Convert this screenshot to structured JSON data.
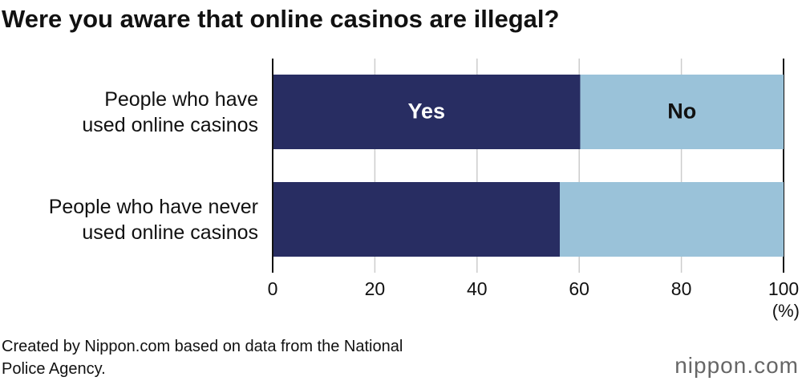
{
  "chart_data": {
    "type": "stacked_barh",
    "title": "Were you aware that online casinos are illegal?",
    "categories": [
      "People who have\nused online casinos",
      "People who have never\nused online casinos"
    ],
    "series": [
      {
        "name": "Yes",
        "color": "#282d62",
        "values": [
          60.2,
          56.2
        ]
      },
      {
        "name": "No",
        "color": "#9ac2d9",
        "values": [
          39.8,
          43.8
        ]
      }
    ],
    "xlim": [
      0,
      100
    ],
    "xticks": [
      0,
      20,
      40,
      60,
      80,
      100
    ],
    "xlabel": "(%)",
    "grid": true,
    "source": "Created by Nippon.com based on data from the National\nPolice Agency.",
    "brand": "nippon.com"
  }
}
